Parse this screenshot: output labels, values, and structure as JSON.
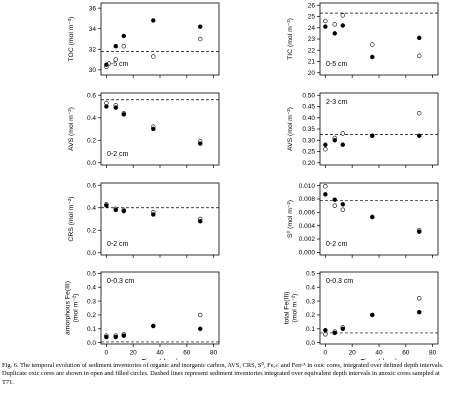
{
  "caption": "Fig. 6. The temporal evolution of sediment inventories of organic and inorganic carbon, AVS, CRS, S⁰, Feₐₛᶜ and Feᴅᶜᴬ in oxic cores, integrated over defined depth intervals. Duplicate oxic cores are shown in open and filled circles. Dashed lines represent sediment inventories integrated over equivalent depth intervals in anoxic cores sampled at T71.",
  "xlabel": "Time (days)",
  "chart_data": [
    {
      "type": "scatter",
      "ylabel": "TOC (mol m⁻²)",
      "depth": "0-5 cm",
      "depth_pos": "bottom-left",
      "ylim": [
        29.5,
        36.5
      ],
      "yticks": [
        30,
        32,
        34,
        36
      ],
      "ytick_labels": [
        "30",
        "32",
        "34",
        "36"
      ],
      "xticks": [
        0,
        20,
        40,
        60,
        80
      ],
      "show_xlabels": false,
      "ref": 31.8,
      "filled": [
        [
          0,
          30.5
        ],
        [
          7,
          32.3
        ],
        [
          13,
          33.3
        ],
        [
          35,
          34.8
        ],
        [
          70,
          34.2
        ]
      ],
      "open": [
        [
          0,
          30.3
        ],
        [
          7,
          31.0
        ],
        [
          13,
          32.3
        ],
        [
          35,
          31.3
        ],
        [
          70,
          33.0
        ]
      ]
    },
    {
      "type": "scatter",
      "ylabel": "TIC (mol m⁻²)",
      "depth": "0-5 cm",
      "depth_pos": "bottom-left",
      "ylim": [
        19.8,
        26.2
      ],
      "yticks": [
        20,
        21,
        22,
        23,
        24,
        25,
        26
      ],
      "ytick_labels": [
        "20",
        "21",
        "22",
        "23",
        "24",
        "25",
        "26"
      ],
      "xticks": [
        0,
        20,
        40,
        60,
        80
      ],
      "show_xlabels": false,
      "ref": 25.3,
      "filled": [
        [
          0,
          24.1
        ],
        [
          7,
          23.5
        ],
        [
          13,
          24.2
        ],
        [
          35,
          21.4
        ],
        [
          70,
          23.1
        ]
      ],
      "open": [
        [
          0,
          24.6
        ],
        [
          7,
          24.3
        ],
        [
          13,
          25.1
        ],
        [
          35,
          22.5
        ],
        [
          70,
          21.5
        ]
      ]
    },
    {
      "type": "scatter",
      "ylabel": "AVS (mol m⁻²)",
      "depth": "0-2 cm",
      "depth_pos": "bottom-left",
      "ylim": [
        -0.02,
        0.62
      ],
      "yticks": [
        0,
        0.2,
        0.4,
        0.6
      ],
      "ytick_labels": [
        "0.0",
        "0.2",
        "0.4",
        "0.6"
      ],
      "xticks": [
        0,
        20,
        40,
        60,
        80
      ],
      "show_xlabels": false,
      "ref": 0.56,
      "filled": [
        [
          0,
          0.5
        ],
        [
          7,
          0.49
        ],
        [
          13,
          0.43
        ],
        [
          35,
          0.3
        ],
        [
          70,
          0.17
        ]
      ],
      "open": [
        [
          0,
          0.53
        ],
        [
          7,
          0.51
        ],
        [
          13,
          0.44
        ],
        [
          35,
          0.32
        ],
        [
          70,
          0.19
        ]
      ]
    },
    {
      "type": "scatter",
      "ylabel": "AVS (mol m⁻²)",
      "depth": "2-3 cm",
      "depth_pos": "top-left",
      "ylim": [
        0.19,
        0.51
      ],
      "yticks": [
        0.2,
        0.25,
        0.3,
        0.35,
        0.4,
        0.45,
        0.5
      ],
      "ytick_labels": [
        "0.20",
        "0.25",
        "0.30",
        "0.35",
        "0.40",
        "0.45",
        "0.50"
      ],
      "xticks": [
        0,
        20,
        40,
        60,
        80
      ],
      "show_xlabels": false,
      "ref": 0.325,
      "filled": [
        [
          0,
          0.28
        ],
        [
          7,
          0.3
        ],
        [
          13,
          0.28
        ],
        [
          35,
          0.32
        ],
        [
          70,
          0.32
        ]
      ],
      "open": [
        [
          0,
          0.26
        ],
        [
          7,
          0.31
        ],
        [
          13,
          0.33
        ],
        [
          35,
          0.32
        ],
        [
          70,
          0.42
        ]
      ]
    },
    {
      "type": "scatter",
      "ylabel": "CRS (mol m⁻²)",
      "depth": "0-2 cm",
      "depth_pos": "bottom-left",
      "ylim": [
        -0.02,
        0.62
      ],
      "yticks": [
        0,
        0.2,
        0.4,
        0.6
      ],
      "ytick_labels": [
        "0.0",
        "0.2",
        "0.4",
        "0.6"
      ],
      "xticks": [
        0,
        20,
        40,
        60,
        80
      ],
      "show_xlabels": false,
      "ref": 0.4,
      "filled": [
        [
          0,
          0.42
        ],
        [
          7,
          0.38
        ],
        [
          13,
          0.37
        ],
        [
          35,
          0.34
        ],
        [
          70,
          0.28
        ]
      ],
      "open": [
        [
          0,
          0.43
        ],
        [
          7,
          0.39
        ],
        [
          13,
          0.38
        ],
        [
          35,
          0.36
        ],
        [
          70,
          0.3
        ]
      ]
    },
    {
      "type": "scatter",
      "ylabel": "S⁰ (mol m⁻²)",
      "depth": "0-2 cm",
      "depth_pos": "bottom-left",
      "ylim": [
        -0.0004,
        0.0104
      ],
      "yticks": [
        0,
        0.002,
        0.004,
        0.006,
        0.008,
        0.01
      ],
      "ytick_labels": [
        "0.000",
        "0.002",
        "0.004",
        "0.006",
        "0.008",
        "0.010"
      ],
      "xticks": [
        0,
        20,
        40,
        60,
        80
      ],
      "show_xlabels": false,
      "ref": 0.0078,
      "filled": [
        [
          0,
          0.0087
        ],
        [
          7,
          0.0079
        ],
        [
          13,
          0.0072
        ],
        [
          35,
          0.0053
        ],
        [
          70,
          0.0031
        ]
      ],
      "open": [
        [
          0,
          0.0099
        ],
        [
          7,
          0.007
        ],
        [
          13,
          0.0064
        ],
        [
          35,
          0.0053
        ],
        [
          70,
          0.0033
        ]
      ]
    },
    {
      "type": "scatter",
      "ylabel": "amorphous Fe(III)\n(mol m⁻²)",
      "depth": "0-0.3 cm",
      "depth_pos": "top-left",
      "ylim": [
        -0.01,
        0.51
      ],
      "yticks": [
        0,
        0.1,
        0.2,
        0.3,
        0.4,
        0.5
      ],
      "ytick_labels": [
        "0.0",
        "0.1",
        "0.2",
        "0.3",
        "0.4",
        "0.5"
      ],
      "xticks": [
        0,
        20,
        40,
        60,
        80
      ],
      "show_xlabels": true,
      "ref": 0.005,
      "filled": [
        [
          0,
          0.04
        ],
        [
          7,
          0.04
        ],
        [
          13,
          0.05
        ],
        [
          35,
          0.12
        ],
        [
          70,
          0.1
        ]
      ],
      "open": [
        [
          0,
          0.05
        ],
        [
          7,
          0.05
        ],
        [
          13,
          0.06
        ],
        [
          35,
          0.12
        ],
        [
          70,
          0.2
        ]
      ]
    },
    {
      "type": "scatter",
      "ylabel": "total Fe(III)\n(mol m⁻²)",
      "depth": "0-0.3 cm",
      "depth_pos": "top-left",
      "ylim": [
        -0.01,
        0.51
      ],
      "yticks": [
        0,
        0.1,
        0.2,
        0.3,
        0.4,
        0.5
      ],
      "ytick_labels": [
        "0.0",
        "0.1",
        "0.2",
        "0.3",
        "0.4",
        "0.5"
      ],
      "xticks": [
        0,
        20,
        40,
        60,
        80
      ],
      "show_xlabels": true,
      "ref": 0.07,
      "filled": [
        [
          0,
          0.09
        ],
        [
          7,
          0.07
        ],
        [
          13,
          0.1
        ],
        [
          35,
          0.2
        ],
        [
          70,
          0.22
        ]
      ],
      "open": [
        [
          0,
          0.06
        ],
        [
          7,
          0.08
        ],
        [
          13,
          0.11
        ],
        [
          35,
          0.2
        ],
        [
          70,
          0.32
        ]
      ]
    }
  ]
}
